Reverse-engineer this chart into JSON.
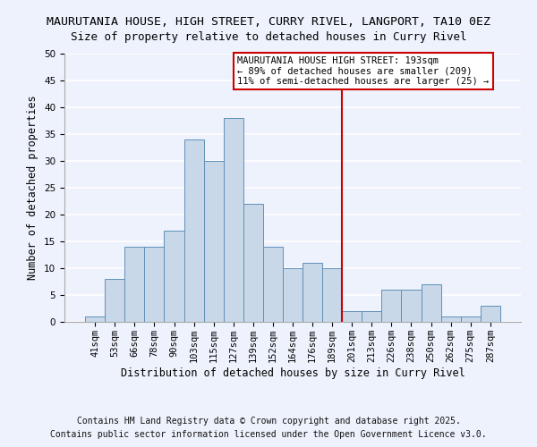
{
  "title": "MAURUTANIA HOUSE, HIGH STREET, CURRY RIVEL, LANGPORT, TA10 0EZ",
  "subtitle": "Size of property relative to detached houses in Curry Rivel",
  "xlabel": "Distribution of detached houses by size in Curry Rivel",
  "ylabel": "Number of detached properties",
  "bin_labels": [
    "41sqm",
    "53sqm",
    "66sqm",
    "78sqm",
    "90sqm",
    "103sqm",
    "115sqm",
    "127sqm",
    "139sqm",
    "152sqm",
    "164sqm",
    "176sqm",
    "189sqm",
    "201sqm",
    "213sqm",
    "226sqm",
    "238sqm",
    "250sqm",
    "262sqm",
    "275sqm",
    "287sqm"
  ],
  "bar_heights": [
    1,
    8,
    14,
    14,
    17,
    34,
    30,
    38,
    22,
    14,
    10,
    11,
    10,
    2,
    2,
    6,
    6,
    7,
    1,
    1,
    3
  ],
  "bar_color": "#c8d8e8",
  "bar_edge_color": "#6090b8",
  "vline_color": "#cc0000",
  "annotation_text": "MAURUTANIA HOUSE HIGH STREET: 193sqm\n← 89% of detached houses are smaller (209)\n11% of semi-detached houses are larger (25) →",
  "annotation_box_edge_color": "#cc0000",
  "ylim": [
    0,
    50
  ],
  "yticks": [
    0,
    5,
    10,
    15,
    20,
    25,
    30,
    35,
    40,
    45,
    50
  ],
  "footer_line1": "Contains HM Land Registry data © Crown copyright and database right 2025.",
  "footer_line2": "Contains public sector information licensed under the Open Government Licence v3.0.",
  "background_color": "#eef2fc",
  "grid_color": "#ffffff",
  "title_fontsize": 9.5,
  "subtitle_fontsize": 9,
  "axis_label_fontsize": 8.5,
  "tick_fontsize": 7.5,
  "annotation_fontsize": 7.5,
  "footer_fontsize": 7
}
